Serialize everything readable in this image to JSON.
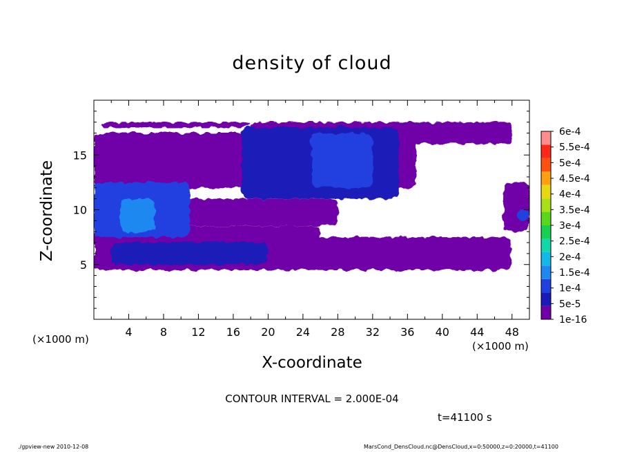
{
  "chart_data": {
    "type": "heatmap",
    "title": "density of cloud",
    "xlabel": "X-coordinate",
    "ylabel": "Z-coordinate",
    "x_unit": "(×1000 m)",
    "x_ticks": [
      4,
      8,
      12,
      16,
      20,
      24,
      28,
      32,
      36,
      40,
      44,
      48
    ],
    "y_ticks": [
      5,
      10,
      15
    ],
    "xlim": [
      0,
      50
    ],
    "ylim": [
      0,
      20
    ],
    "colorbar": {
      "labels": [
        "1e-16",
        "5e-5",
        "1e-4",
        "1.5e-4",
        "2e-4",
        "2.5e-4",
        "3e-4",
        "3.5e-4",
        "4e-4",
        "4.5e-4",
        "5e-4",
        "5.5e-4",
        "6e-4"
      ],
      "colors": [
        "#7000a8",
        "#1a1ab8",
        "#2040e0",
        "#1e88f0",
        "#14b8e8",
        "#10d8a8",
        "#18d050",
        "#58d818",
        "#a8e018",
        "#e8d810",
        "#ffa010",
        "#ff5010",
        "#ff2818",
        "#ff8c8c"
      ]
    },
    "cloud_regions": [
      {
        "x": [
          1.0,
          18.0
        ],
        "z": [
          17.5,
          18.0
        ],
        "level": "1e-16"
      },
      {
        "x": [
          18.0,
          48.0
        ],
        "z": [
          16.0,
          18.0
        ],
        "level": "1e-16"
      },
      {
        "x": [
          0.0,
          37.0
        ],
        "z": [
          12.0,
          17.0
        ],
        "level": "1e-16"
      },
      {
        "x": [
          0.0,
          11.0
        ],
        "z": [
          7.0,
          12.0
        ],
        "level": "1e-16"
      },
      {
        "x": [
          10.0,
          28.0
        ],
        "z": [
          8.5,
          11.0
        ],
        "level": "1e-16"
      },
      {
        "x": [
          0.0,
          26.0
        ],
        "z": [
          5.5,
          8.5
        ],
        "level": "1e-16"
      },
      {
        "x": [
          0.0,
          48.0
        ],
        "z": [
          4.5,
          7.5
        ],
        "level": "1e-16"
      },
      {
        "x": [
          47.0,
          50.0
        ],
        "z": [
          8.0,
          12.5
        ],
        "level": "1e-16"
      },
      {
        "x": [
          0.0,
          11.0
        ],
        "z": [
          7.5,
          12.5
        ],
        "level": "1e-4"
      },
      {
        "x": [
          17.0,
          35.0
        ],
        "z": [
          11.0,
          17.5
        ],
        "level": "5e-5"
      },
      {
        "x": [
          25.0,
          32.0
        ],
        "z": [
          12.0,
          17.0
        ],
        "level": "1e-4"
      },
      {
        "x": [
          3.0,
          7.0
        ],
        "z": [
          8.0,
          11.0
        ],
        "level": "1.5e-4"
      },
      {
        "x": [
          2.0,
          20.0
        ],
        "z": [
          5.0,
          7.0
        ],
        "level": "5e-5"
      },
      {
        "x": [
          48.5,
          50.0
        ],
        "z": [
          9.0,
          10.0
        ],
        "level": "1e-4"
      }
    ]
  },
  "annotations": {
    "contour_interval": "CONTOUR INTERVAL = 2.000E-04",
    "time": "t=41100 s",
    "footer_left": "./gpview-new   2010-12-08",
    "footer_right": "MarsCond_DensCloud.nc@DensCloud,x=0:50000,z=0:20000,t=41100"
  }
}
